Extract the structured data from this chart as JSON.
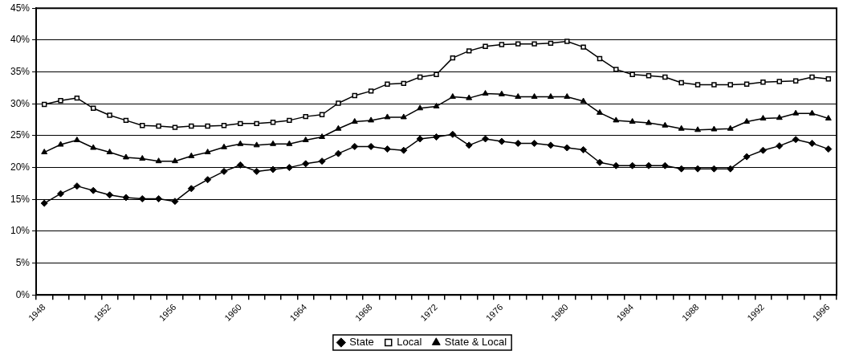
{
  "chart_data": {
    "type": "line",
    "categories": [
      "1948",
      null,
      null,
      null,
      "1952",
      null,
      null,
      null,
      "1956",
      null,
      null,
      null,
      "1960",
      null,
      null,
      null,
      "1964",
      null,
      null,
      null,
      "1968",
      null,
      null,
      null,
      "1972",
      null,
      null,
      null,
      "1976",
      null,
      null,
      null,
      "1980",
      null,
      null,
      null,
      "1984",
      null,
      null,
      null,
      "1988",
      null,
      null,
      null,
      "1992",
      null,
      null,
      null,
      "1996"
    ],
    "series": [
      {
        "name": "State",
        "color": "#000000",
        "marker": "diamond",
        "values": [
          14.4,
          15.9,
          17.1,
          16.4,
          15.7,
          15.3,
          15.1,
          15.1,
          14.7,
          16.7,
          18.1,
          19.4,
          20.4,
          19.4,
          19.7,
          20.0,
          20.6,
          21.0,
          22.2,
          23.3,
          23.3,
          22.9,
          22.7,
          24.5,
          24.8,
          25.2,
          23.5,
          24.5,
          24.1,
          23.8,
          23.8,
          23.5,
          23.1,
          22.8,
          20.8,
          20.3,
          20.3,
          20.3,
          20.3,
          19.8,
          19.8,
          19.8,
          19.8,
          21.7,
          22.7,
          23.4,
          24.4,
          23.8,
          22.9
        ]
      },
      {
        "name": "Local",
        "color": "#000000",
        "marker": "square",
        "values": [
          29.9,
          30.5,
          30.9,
          29.3,
          28.2,
          27.4,
          26.6,
          26.5,
          26.3,
          26.5,
          26.5,
          26.6,
          26.9,
          26.9,
          27.1,
          27.4,
          28.0,
          28.3,
          30.1,
          31.3,
          32.0,
          33.1,
          33.2,
          34.2,
          34.6,
          37.2,
          38.3,
          39.0,
          39.3,
          39.4,
          39.4,
          39.5,
          39.8,
          38.9,
          37.1,
          35.4,
          34.6,
          34.4,
          34.2,
          33.3,
          33.0,
          33.0,
          33.0,
          33.1,
          33.4,
          33.5,
          33.6,
          34.2,
          33.9
        ]
      },
      {
        "name": "State & Local",
        "color": "#000000",
        "marker": "triangle",
        "values": [
          22.4,
          23.6,
          24.3,
          23.1,
          22.4,
          21.6,
          21.4,
          21.0,
          21.0,
          21.8,
          22.4,
          23.2,
          23.7,
          23.5,
          23.7,
          23.7,
          24.3,
          24.8,
          26.1,
          27.2,
          27.4,
          27.9,
          27.9,
          29.3,
          29.6,
          31.1,
          30.9,
          31.6,
          31.5,
          31.1,
          31.1,
          31.1,
          31.1,
          30.4,
          28.6,
          27.4,
          27.2,
          27.0,
          26.6,
          26.1,
          25.9,
          26.0,
          26.1,
          27.2,
          27.7,
          27.8,
          28.5,
          28.5,
          27.7
        ]
      }
    ],
    "ylim": [
      0,
      45
    ],
    "yticks": [
      {
        "value": 0,
        "label": "0%"
      },
      {
        "value": 5,
        "label": "5%"
      },
      {
        "value": 10,
        "label": "10%"
      },
      {
        "value": 15,
        "label": "15%"
      },
      {
        "value": 20,
        "label": "20%"
      },
      {
        "value": 25,
        "label": "25%"
      },
      {
        "value": 30,
        "label": "30%"
      },
      {
        "value": 35,
        "label": "35%"
      },
      {
        "value": 40,
        "label": "40%"
      },
      {
        "value": 45,
        "label": "45%"
      }
    ],
    "grid": "y",
    "legend": "bottom",
    "line_style": "solid"
  }
}
